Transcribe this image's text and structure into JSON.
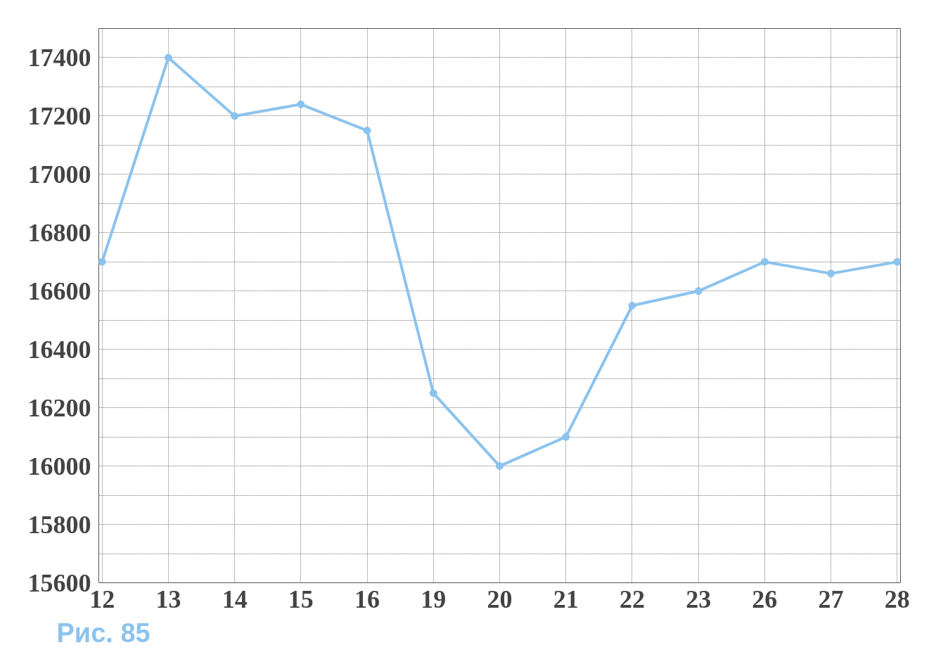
{
  "chart_data": {
    "type": "line",
    "categories": [
      "12",
      "13",
      "14",
      "15",
      "16",
      "19",
      "20",
      "21",
      "22",
      "23",
      "26",
      "27",
      "28"
    ],
    "series": [
      {
        "color": "#8cc3ee",
        "values": [
          16700,
          17400,
          17200,
          17240,
          17150,
          16250,
          16000,
          16100,
          16550,
          16600,
          16700,
          16660,
          16700
        ]
      }
    ],
    "ylim": [
      15600,
      17500
    ],
    "yticks": [
      15600,
      {
        "value": 15700,
        "label": null
      },
      15800,
      {
        "value": 15900,
        "label": null
      },
      16000,
      {
        "value": 16100,
        "label": null
      },
      16200,
      {
        "value": 16300,
        "label": null
      },
      16400,
      {
        "value": 16500,
        "label": null
      },
      16600,
      {
        "value": 16700,
        "label": null
      },
      16800,
      {
        "value": 16900,
        "label": null
      },
      17000,
      {
        "value": 17100,
        "label": null
      },
      17200,
      {
        "value": 17300,
        "label": null
      },
      17400,
      {
        "value": 17500,
        "label": null
      }
    ],
    "grid": true,
    "marker": "circle",
    "line_style": "solid",
    "annotations": [
      "Рис. 85"
    ]
  }
}
